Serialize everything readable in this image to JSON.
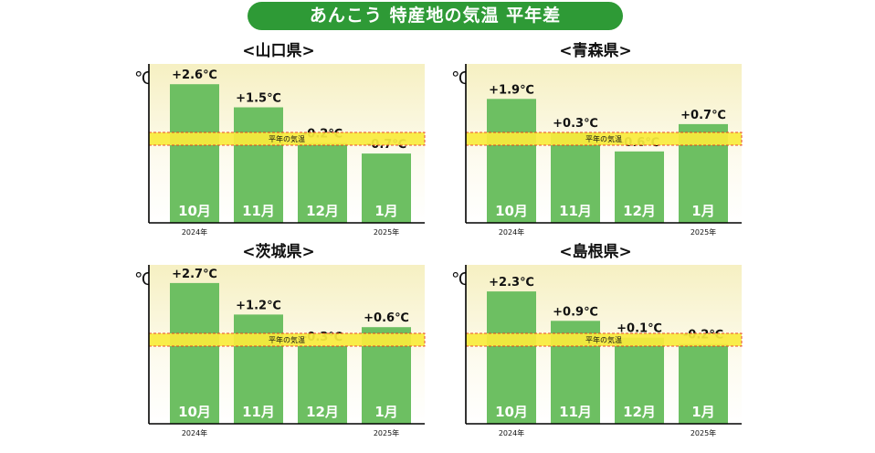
{
  "title": "あんこう 特産地の気温 平年差",
  "chart_data": [
    {
      "type": "bar",
      "title": "<山口県>",
      "ylabel": "℃",
      "baseline_label": "平年の気温",
      "categories": [
        "10月",
        "11月",
        "12月",
        "1月"
      ],
      "values": [
        2.6,
        1.5,
        -0.2,
        -0.7
      ],
      "value_labels": [
        "+2.6℃",
        "+1.5℃",
        "-0.2℃",
        "-0.7℃"
      ],
      "year_labels": [
        "2024年",
        "",
        "",
        "2025年"
      ],
      "ylim": [
        -4,
        3
      ],
      "grid": false,
      "colors": {
        "bar": "#6dbf62",
        "baseline": "#f9ec3d",
        "baseline_border": "#e83c1e"
      }
    },
    {
      "type": "bar",
      "title": "<青森県>",
      "ylabel": "℃",
      "baseline_label": "平年の気温",
      "categories": [
        "10月",
        "11月",
        "12月",
        "1月"
      ],
      "values": [
        1.9,
        0.3,
        -0.6,
        0.7
      ],
      "value_labels": [
        "+1.9℃",
        "+0.3℃",
        "-0.6℃",
        "+0.7℃"
      ],
      "year_labels": [
        "2024年",
        "",
        "",
        "2025年"
      ],
      "ylim": [
        -4,
        3
      ],
      "grid": false,
      "colors": {
        "bar": "#6dbf62",
        "baseline": "#f9ec3d",
        "baseline_border": "#e83c1e"
      }
    },
    {
      "type": "bar",
      "title": "<茨城県>",
      "ylabel": "℃",
      "baseline_label": "平年の気温",
      "categories": [
        "10月",
        "11月",
        "12月",
        "1月"
      ],
      "values": [
        2.7,
        1.2,
        -0.3,
        0.6
      ],
      "value_labels": [
        "+2.7℃",
        "+1.2℃",
        "-0.3℃",
        "+0.6℃"
      ],
      "year_labels": [
        "2024年",
        "",
        "",
        "2025年"
      ],
      "ylim": [
        -4,
        3
      ],
      "grid": false,
      "colors": {
        "bar": "#6dbf62",
        "baseline": "#f9ec3d",
        "baseline_border": "#e83c1e"
      }
    },
    {
      "type": "bar",
      "title": "<島根県>",
      "ylabel": "℃",
      "baseline_label": "平年の気温",
      "categories": [
        "10月",
        "11月",
        "12月",
        "1月"
      ],
      "values": [
        2.3,
        0.9,
        0.1,
        -0.2
      ],
      "value_labels": [
        "+2.3℃",
        "+0.9℃",
        "+0.1℃",
        "-0.2℃"
      ],
      "year_labels": [
        "2024年",
        "",
        "",
        "2025年"
      ],
      "ylim": [
        -4,
        3
      ],
      "grid": false,
      "colors": {
        "bar": "#6dbf62",
        "baseline": "#f9ec3d",
        "baseline_border": "#e83c1e"
      }
    }
  ]
}
